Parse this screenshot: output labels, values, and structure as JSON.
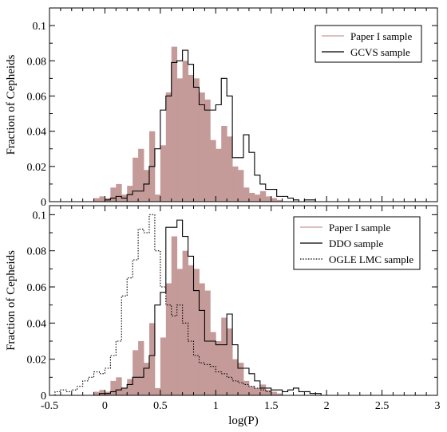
{
  "chart_data": [
    {
      "type": "histogram",
      "panel": "top",
      "xlabel": "",
      "ylabel": "Fraction of Cepheids",
      "xlim": [
        -0.5,
        3.0
      ],
      "ylim": [
        0,
        0.11
      ],
      "bin_width": 0.05,
      "yticks": [
        "0",
        "0.02",
        "0.04",
        "0.06",
        "0.08",
        "0.1"
      ],
      "legend": {
        "placement": "top-right"
      },
      "series": [
        {
          "name": "Paper I sample",
          "style": "filled",
          "color": "#c49b98",
          "edges": [
            -0.1,
            -0.05,
            0.0,
            0.05,
            0.1,
            0.15,
            0.2,
            0.25,
            0.3,
            0.35,
            0.4,
            0.45,
            0.5,
            0.55,
            0.6,
            0.65,
            0.7,
            0.75,
            0.8,
            0.85,
            0.9,
            0.95,
            1.0,
            1.05,
            1.1,
            1.15,
            1.2,
            1.25,
            1.3,
            1.35,
            1.4,
            1.45,
            1.5,
            1.55,
            1.6
          ],
          "values": [
            0.002,
            0.003,
            0.002,
            0.008,
            0.01,
            0.004,
            0.009,
            0.025,
            0.03,
            0.018,
            0.04,
            0.004,
            0.032,
            0.062,
            0.088,
            0.07,
            0.08,
            0.072,
            0.07,
            0.062,
            0.058,
            0.035,
            0.03,
            0.043,
            0.037,
            0.02,
            0.018,
            0.008,
            0.005,
            0.004,
            0.006,
            0.003,
            0.002,
            0.001
          ]
        },
        {
          "name": "GCVS sample",
          "style": "step",
          "color": "#000000",
          "edges": [
            -0.1,
            -0.05,
            0.0,
            0.05,
            0.1,
            0.15,
            0.2,
            0.25,
            0.3,
            0.35,
            0.4,
            0.45,
            0.5,
            0.55,
            0.6,
            0.65,
            0.7,
            0.75,
            0.8,
            0.85,
            0.9,
            0.95,
            1.0,
            1.05,
            1.1,
            1.15,
            1.2,
            1.25,
            1.3,
            1.35,
            1.4,
            1.45,
            1.5,
            1.55,
            1.6,
            1.65,
            1.7,
            1.75,
            1.8,
            1.85,
            1.9,
            1.95,
            2.0
          ],
          "values": [
            0,
            0,
            0.001,
            0.002,
            0.003,
            0.002,
            0.004,
            0.006,
            0.006,
            0.01,
            0.02,
            0.03,
            0.052,
            0.06,
            0.079,
            0.08,
            0.086,
            0.078,
            0.065,
            0.055,
            0.052,
            0.052,
            0.055,
            0.07,
            0.06,
            0.025,
            0.025,
            0.038,
            0.028,
            0.015,
            0.01,
            0.007,
            0.007,
            0.003,
            0.003,
            0.002,
            0.001,
            0,
            0.001,
            0.001,
            0,
            0
          ]
        }
      ]
    },
    {
      "type": "histogram",
      "panel": "bottom",
      "xlabel": "log(P)",
      "ylabel": "Fraction of Cepheids",
      "xlim": [
        -0.5,
        3.0
      ],
      "ylim": [
        0,
        0.105
      ],
      "bin_width": 0.05,
      "xticks": [
        "-0.5",
        "0",
        "0.5",
        "1",
        "1.5",
        "2",
        "2.5",
        "3"
      ],
      "yticks": [
        "0",
        "0.02",
        "0.04",
        "0.06",
        "0.08",
        "0.1"
      ],
      "legend": {
        "placement": "top-right"
      },
      "series": [
        {
          "name": "Paper I sample",
          "style": "filled",
          "color": "#c49b98",
          "edges": [
            -0.1,
            -0.05,
            0.0,
            0.05,
            0.1,
            0.15,
            0.2,
            0.25,
            0.3,
            0.35,
            0.4,
            0.45,
            0.5,
            0.55,
            0.6,
            0.65,
            0.7,
            0.75,
            0.8,
            0.85,
            0.9,
            0.95,
            1.0,
            1.05,
            1.1,
            1.15,
            1.2,
            1.25,
            1.3,
            1.35,
            1.4,
            1.45,
            1.5,
            1.55,
            1.6
          ],
          "values": [
            0.002,
            0.003,
            0.002,
            0.008,
            0.01,
            0.004,
            0.009,
            0.025,
            0.03,
            0.018,
            0.04,
            0.004,
            0.032,
            0.062,
            0.088,
            0.07,
            0.08,
            0.072,
            0.07,
            0.062,
            0.058,
            0.035,
            0.03,
            0.043,
            0.037,
            0.02,
            0.018,
            0.008,
            0.005,
            0.004,
            0.006,
            0.003,
            0.002,
            0.001
          ]
        },
        {
          "name": "DDO sample",
          "style": "step",
          "color": "#000000",
          "edges": [
            -0.1,
            -0.05,
            0.0,
            0.05,
            0.1,
            0.15,
            0.2,
            0.25,
            0.3,
            0.35,
            0.4,
            0.45,
            0.5,
            0.55,
            0.6,
            0.65,
            0.7,
            0.75,
            0.8,
            0.85,
            0.9,
            0.95,
            1.0,
            1.05,
            1.1,
            1.15,
            1.2,
            1.25,
            1.3,
            1.35,
            1.4,
            1.45,
            1.5,
            1.55,
            1.6,
            1.65,
            1.7,
            1.75,
            1.8,
            1.85,
            1.9,
            1.95,
            2.0
          ],
          "values": [
            0,
            0.001,
            0.001,
            0.002,
            0.003,
            0.004,
            0.006,
            0.01,
            0.01,
            0.015,
            0.022,
            0.05,
            0.057,
            0.093,
            0.093,
            0.097,
            0.088,
            0.077,
            0.058,
            0.047,
            0.03,
            0.03,
            0.028,
            0.028,
            0.045,
            0.028,
            0.015,
            0.015,
            0.012,
            0.008,
            0.004,
            0.004,
            0.003,
            0.003,
            0.002,
            0.003,
            0.004,
            0.002,
            0.002,
            0.001,
            0.001,
            0
          ]
        },
        {
          "name": "OGLE LMC sample",
          "style": "dotted-step",
          "color": "#000000",
          "edges": [
            -0.45,
            -0.4,
            -0.35,
            -0.3,
            -0.25,
            -0.2,
            -0.15,
            -0.1,
            -0.05,
            0.0,
            0.05,
            0.1,
            0.15,
            0.2,
            0.25,
            0.3,
            0.35,
            0.4,
            0.45,
            0.5,
            0.55,
            0.6,
            0.65,
            0.7,
            0.75,
            0.8,
            0.85,
            0.9,
            0.95,
            1.0,
            1.05,
            1.1,
            1.15,
            1.2,
            1.25,
            1.3,
            1.35,
            1.4,
            1.45,
            1.5
          ],
          "values": [
            0.002,
            0.003,
            0.002,
            0.003,
            0.005,
            0.008,
            0.01,
            0.013,
            0.012,
            0.015,
            0.022,
            0.03,
            0.055,
            0.065,
            0.075,
            0.092,
            0.09,
            0.1,
            0.08,
            0.06,
            0.05,
            0.044,
            0.05,
            0.04,
            0.03,
            0.022,
            0.018,
            0.017,
            0.016,
            0.013,
            0.012,
            0.01,
            0.008,
            0.007,
            0.006,
            0.005,
            0.004,
            0.003,
            0.002
          ]
        }
      ]
    }
  ]
}
